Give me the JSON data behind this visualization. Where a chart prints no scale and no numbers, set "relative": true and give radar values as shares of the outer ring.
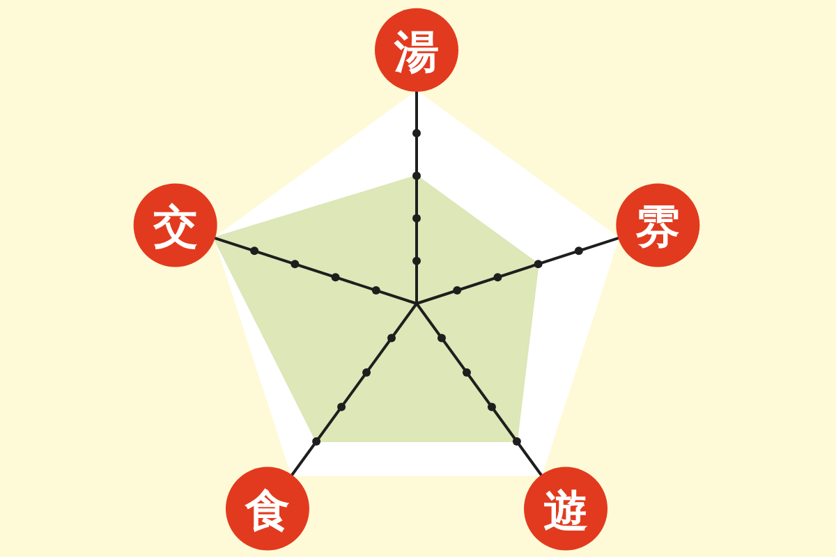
{
  "chart_data": {
    "type": "radar",
    "relative": true,
    "grid": true,
    "categories": [
      "湯",
      "雰",
      "遊",
      "食",
      "交"
    ],
    "series": [
      {
        "color": "#dde7b7",
        "values": [
          0.6,
          0.6,
          0.8,
          0.8,
          1
        ]
      }
    ]
  }
}
